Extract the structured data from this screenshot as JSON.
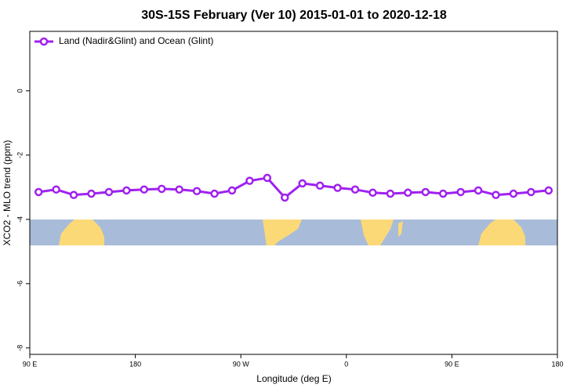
{
  "chart_data": {
    "type": "line",
    "title": "30S-15S February (Ver 10)   2015-01-01 to 2020-12-18",
    "x_label": "Longitude (deg E)",
    "y_label": "XCO2 - MLO trend (ppm)",
    "x": [
      97.5,
      112.5,
      127.5,
      142.5,
      157.5,
      172.5,
      187.5,
      202.5,
      217.5,
      232.5,
      247.5,
      262.5,
      277.5,
      292.5,
      307.5,
      322.5,
      337.5,
      352.5,
      367.5,
      382.5,
      397.5,
      412.5,
      427.5,
      442.5,
      457.5,
      472.5,
      487.5,
      502.5,
      517.5,
      532.5
    ],
    "series": [
      {
        "name": "Land (Nadir&Glint) and Ocean (Glint)",
        "color": "#a020f0",
        "values": [
          -3.15,
          -3.07,
          -3.24,
          -3.2,
          -3.15,
          -3.1,
          -3.07,
          -3.05,
          -3.07,
          -3.12,
          -3.2,
          -3.1,
          -2.8,
          -2.71,
          -3.32,
          -2.88,
          -2.95,
          -3.02,
          -3.07,
          -3.17,
          -3.2,
          -3.17,
          -3.15,
          -3.2,
          -3.15,
          -3.1,
          -3.24,
          -3.2,
          -3.15,
          -3.1
        ]
      }
    ],
    "xlim": [
      90,
      540
    ],
    "xticks": [
      {
        "value": 90,
        "label": "90 E"
      },
      180,
      {
        "value": 270,
        "label": "90 W"
      },
      {
        "value": 360,
        "label": "0"
      },
      {
        "value": 450,
        "label": "90 E"
      },
      {
        "value": 540,
        "label": "180"
      }
    ],
    "ylim": [
      -8.2,
      1.85
    ],
    "yticks": [
      0,
      -2,
      -4,
      -6,
      -8
    ],
    "legend": "top-left"
  }
}
